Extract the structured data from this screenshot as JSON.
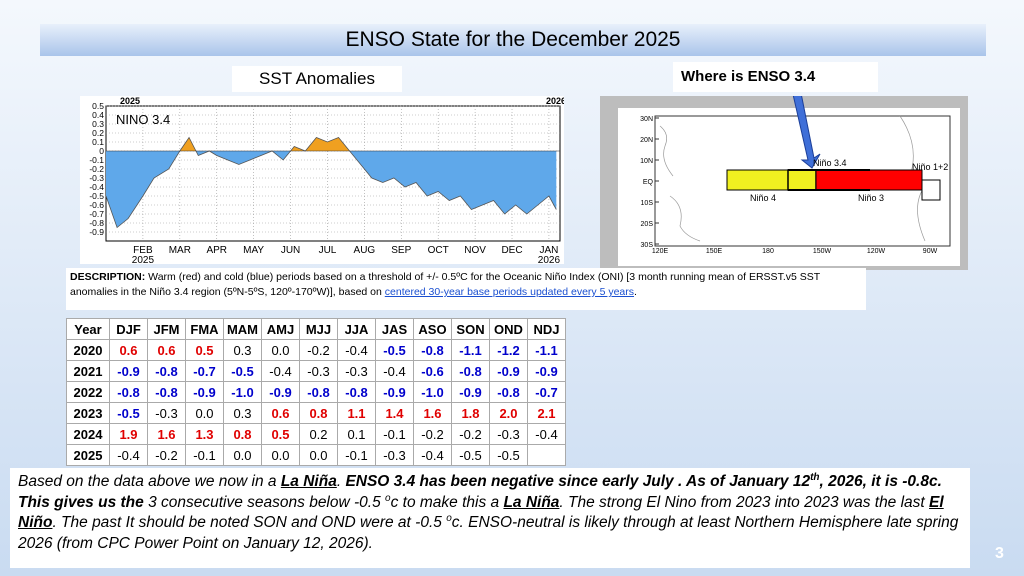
{
  "slide": {
    "title": "ENSO State for the December 2025",
    "page_number": "3"
  },
  "sst_chart": {
    "type": "area",
    "title": "SST Anomalies",
    "label": "NINO 3.4",
    "year_labels": [
      "2025",
      "2026"
    ],
    "x": [
      0,
      0.3,
      0.6,
      1.0,
      1.3,
      1.7,
      2.0,
      2.25,
      2.5,
      2.8,
      3.0,
      3.3,
      3.6,
      3.9,
      4.2,
      4.5,
      4.8,
      5.1,
      5.4,
      5.7,
      6.0,
      6.3,
      6.6,
      6.9,
      7.2,
      7.5,
      7.8,
      8.1,
      8.4,
      8.7,
      9.0,
      9.3,
      9.6,
      9.9,
      10.2,
      10.5,
      10.8,
      11.1,
      11.4,
      11.7,
      12.0,
      12.2
    ],
    "values": [
      -0.5,
      -0.85,
      -0.75,
      -0.5,
      -0.3,
      -0.2,
      0.0,
      0.15,
      -0.05,
      0.0,
      -0.05,
      -0.1,
      -0.15,
      -0.1,
      -0.05,
      0.0,
      -0.1,
      0.05,
      0.0,
      0.15,
      0.1,
      0.15,
      0.0,
      -0.15,
      -0.3,
      -0.35,
      -0.3,
      -0.4,
      -0.35,
      -0.5,
      -0.45,
      -0.55,
      -0.5,
      -0.65,
      -0.6,
      -0.55,
      -0.7,
      -0.6,
      -0.7,
      -0.6,
      -0.5,
      -0.65
    ],
    "warm_color": "#f0a020",
    "cold_color": "#5fa8ea",
    "xlim": [
      0,
      12.3
    ],
    "xticks": [
      {
        "value": 1,
        "label": "FEB"
      },
      {
        "value": 2,
        "label": "MAR"
      },
      {
        "value": 3,
        "label": "APR"
      },
      {
        "value": 4,
        "label": "MAY"
      },
      {
        "value": 5,
        "label": "JUN"
      },
      {
        "value": 6,
        "label": "JUL"
      },
      {
        "value": 7,
        "label": "AUG"
      },
      {
        "value": 8,
        "label": "SEP"
      },
      {
        "value": 9,
        "label": "OCT"
      },
      {
        "value": 10,
        "label": "NOV"
      },
      {
        "value": 11,
        "label": "DEC"
      },
      {
        "value": 12,
        "label": "JAN"
      }
    ],
    "ylim": [
      -1.0,
      0.5
    ],
    "yticks": [
      0.5,
      0.4,
      0.3,
      0.2,
      0.1,
      0,
      -0.1,
      -0.2,
      -0.3,
      -0.4,
      -0.5,
      -0.6,
      -0.7,
      -0.8,
      -0.9
    ],
    "grid": true
  },
  "map": {
    "callout": "Where is ENSO 3.4",
    "lat_labels": [
      "30N",
      "20N",
      "10N",
      "EQ",
      "10S",
      "20S",
      "30S"
    ],
    "lon_labels": [
      "120E",
      "150E",
      "180",
      "150W",
      "120W",
      "90W"
    ],
    "regions": [
      "Niño 3.4",
      "Niño 4",
      "Niño 3",
      "Niño 1+2"
    ]
  },
  "description": [
    "DESCRIPTION:",
    " Warm (red) and cold (blue) periods based on a threshold of +/- 0.5ºC for the Oceanic Niño Index (ONI) [3 month running mean of ERSST.v5 SST anomalies in the Niño 3.4 region (5ºN-5ºS, 120º-170ºW)], based on ",
    "centered 30-year base periods updated every 5 years",
    "."
  ],
  "table": {
    "header": [
      "Year",
      "DJF",
      "JFM",
      "FMA",
      "MAM",
      "AMJ",
      "MJJ",
      "JJA",
      "JAS",
      "ASO",
      "SON",
      "OND",
      "NDJ"
    ],
    "rows": [
      {
        "year": "2020",
        "values": [
          "0.6",
          "0.6",
          "0.5",
          "0.3",
          "0.0",
          "-0.2",
          "-0.4",
          "-0.5",
          "-0.8",
          "-1.1",
          "-1.2",
          "-1.1"
        ],
        "colors": [
          "#e00000",
          "#e00000",
          "#e00000",
          "#000000",
          "#000000",
          "#000000",
          "#000000",
          "#0000cc",
          "#0000cc",
          "#0000cc",
          "#0000cc",
          "#0000cc"
        ]
      },
      {
        "year": "2021",
        "values": [
          "-0.9",
          "-0.8",
          "-0.7",
          "-0.5",
          "-0.4",
          "-0.3",
          "-0.3",
          "-0.4",
          "-0.6",
          "-0.8",
          "-0.9",
          "-0.9"
        ],
        "colors": [
          "#0000cc",
          "#0000cc",
          "#0000cc",
          "#0000cc",
          "#000000",
          "#000000",
          "#000000",
          "#000000",
          "#0000cc",
          "#0000cc",
          "#0000cc",
          "#0000cc"
        ]
      },
      {
        "year": "2022",
        "values": [
          "-0.8",
          "-0.8",
          "-0.9",
          "-1.0",
          "-0.9",
          "-0.8",
          "-0.8",
          "-0.9",
          "-1.0",
          "-0.9",
          "-0.8",
          "-0.7"
        ],
        "colors": [
          "#0000cc",
          "#0000cc",
          "#0000cc",
          "#0000cc",
          "#0000cc",
          "#0000cc",
          "#0000cc",
          "#0000cc",
          "#0000cc",
          "#0000cc",
          "#0000cc",
          "#0000cc"
        ]
      },
      {
        "year": "2023",
        "values": [
          "-0.5",
          "-0.3",
          "0.0",
          "0.3",
          "0.6",
          "0.8",
          "1.1",
          "1.4",
          "1.6",
          "1.8",
          "2.0",
          "2.1"
        ],
        "colors": [
          "#0000cc",
          "#000000",
          "#000000",
          "#000000",
          "#e00000",
          "#e00000",
          "#e00000",
          "#e00000",
          "#e00000",
          "#e00000",
          "#e00000",
          "#e00000"
        ]
      },
      {
        "year": "2024",
        "values": [
          "1.9",
          "1.6",
          "1.3",
          "0.8",
          "0.5",
          "0.2",
          "0.1",
          "-0.1",
          "-0.2",
          "-0.2",
          "-0.3",
          "-0.4"
        ],
        "colors": [
          "#e00000",
          "#e00000",
          "#e00000",
          "#e00000",
          "#e00000",
          "#000000",
          "#000000",
          "#000000",
          "#000000",
          "#000000",
          "#000000",
          "#000000"
        ]
      },
      {
        "year": "2025",
        "values": [
          "-0.4",
          "-0.2",
          "-0.1",
          "0.0",
          "0.0",
          "0.0",
          "-0.1",
          "-0.3",
          "-0.4",
          "-0.5",
          "-0.5"
        ],
        "colors": [
          "#000000",
          "#000000",
          "#000000",
          "#000000",
          "#000000",
          "#000000",
          "#000000",
          "#000000",
          "#000000",
          "#000000",
          "#000000"
        ]
      }
    ]
  },
  "paragraph": [
    "Based on the data above we now in a ",
    "La Niña",
    ".  ",
    "ENSO 3.4 has been negative since early July . As of  January 12",
    "th",
    ", 2026, it is -0.8c. This gives us the",
    " 3 consecutive seasons below -0.5 ",
    "o",
    "c to make this a ",
    "La Niña",
    ".  The strong El Nino from 2023 into 2023 was the last ",
    "El Niño",
    ". The past It should be noted SON and OND were at -0.5 ",
    "o",
    "c. ENSO-neutral is likely through at least Northern Hemisphere late spring 2026 (from CPC Power Point on January 12, 2026)."
  ]
}
